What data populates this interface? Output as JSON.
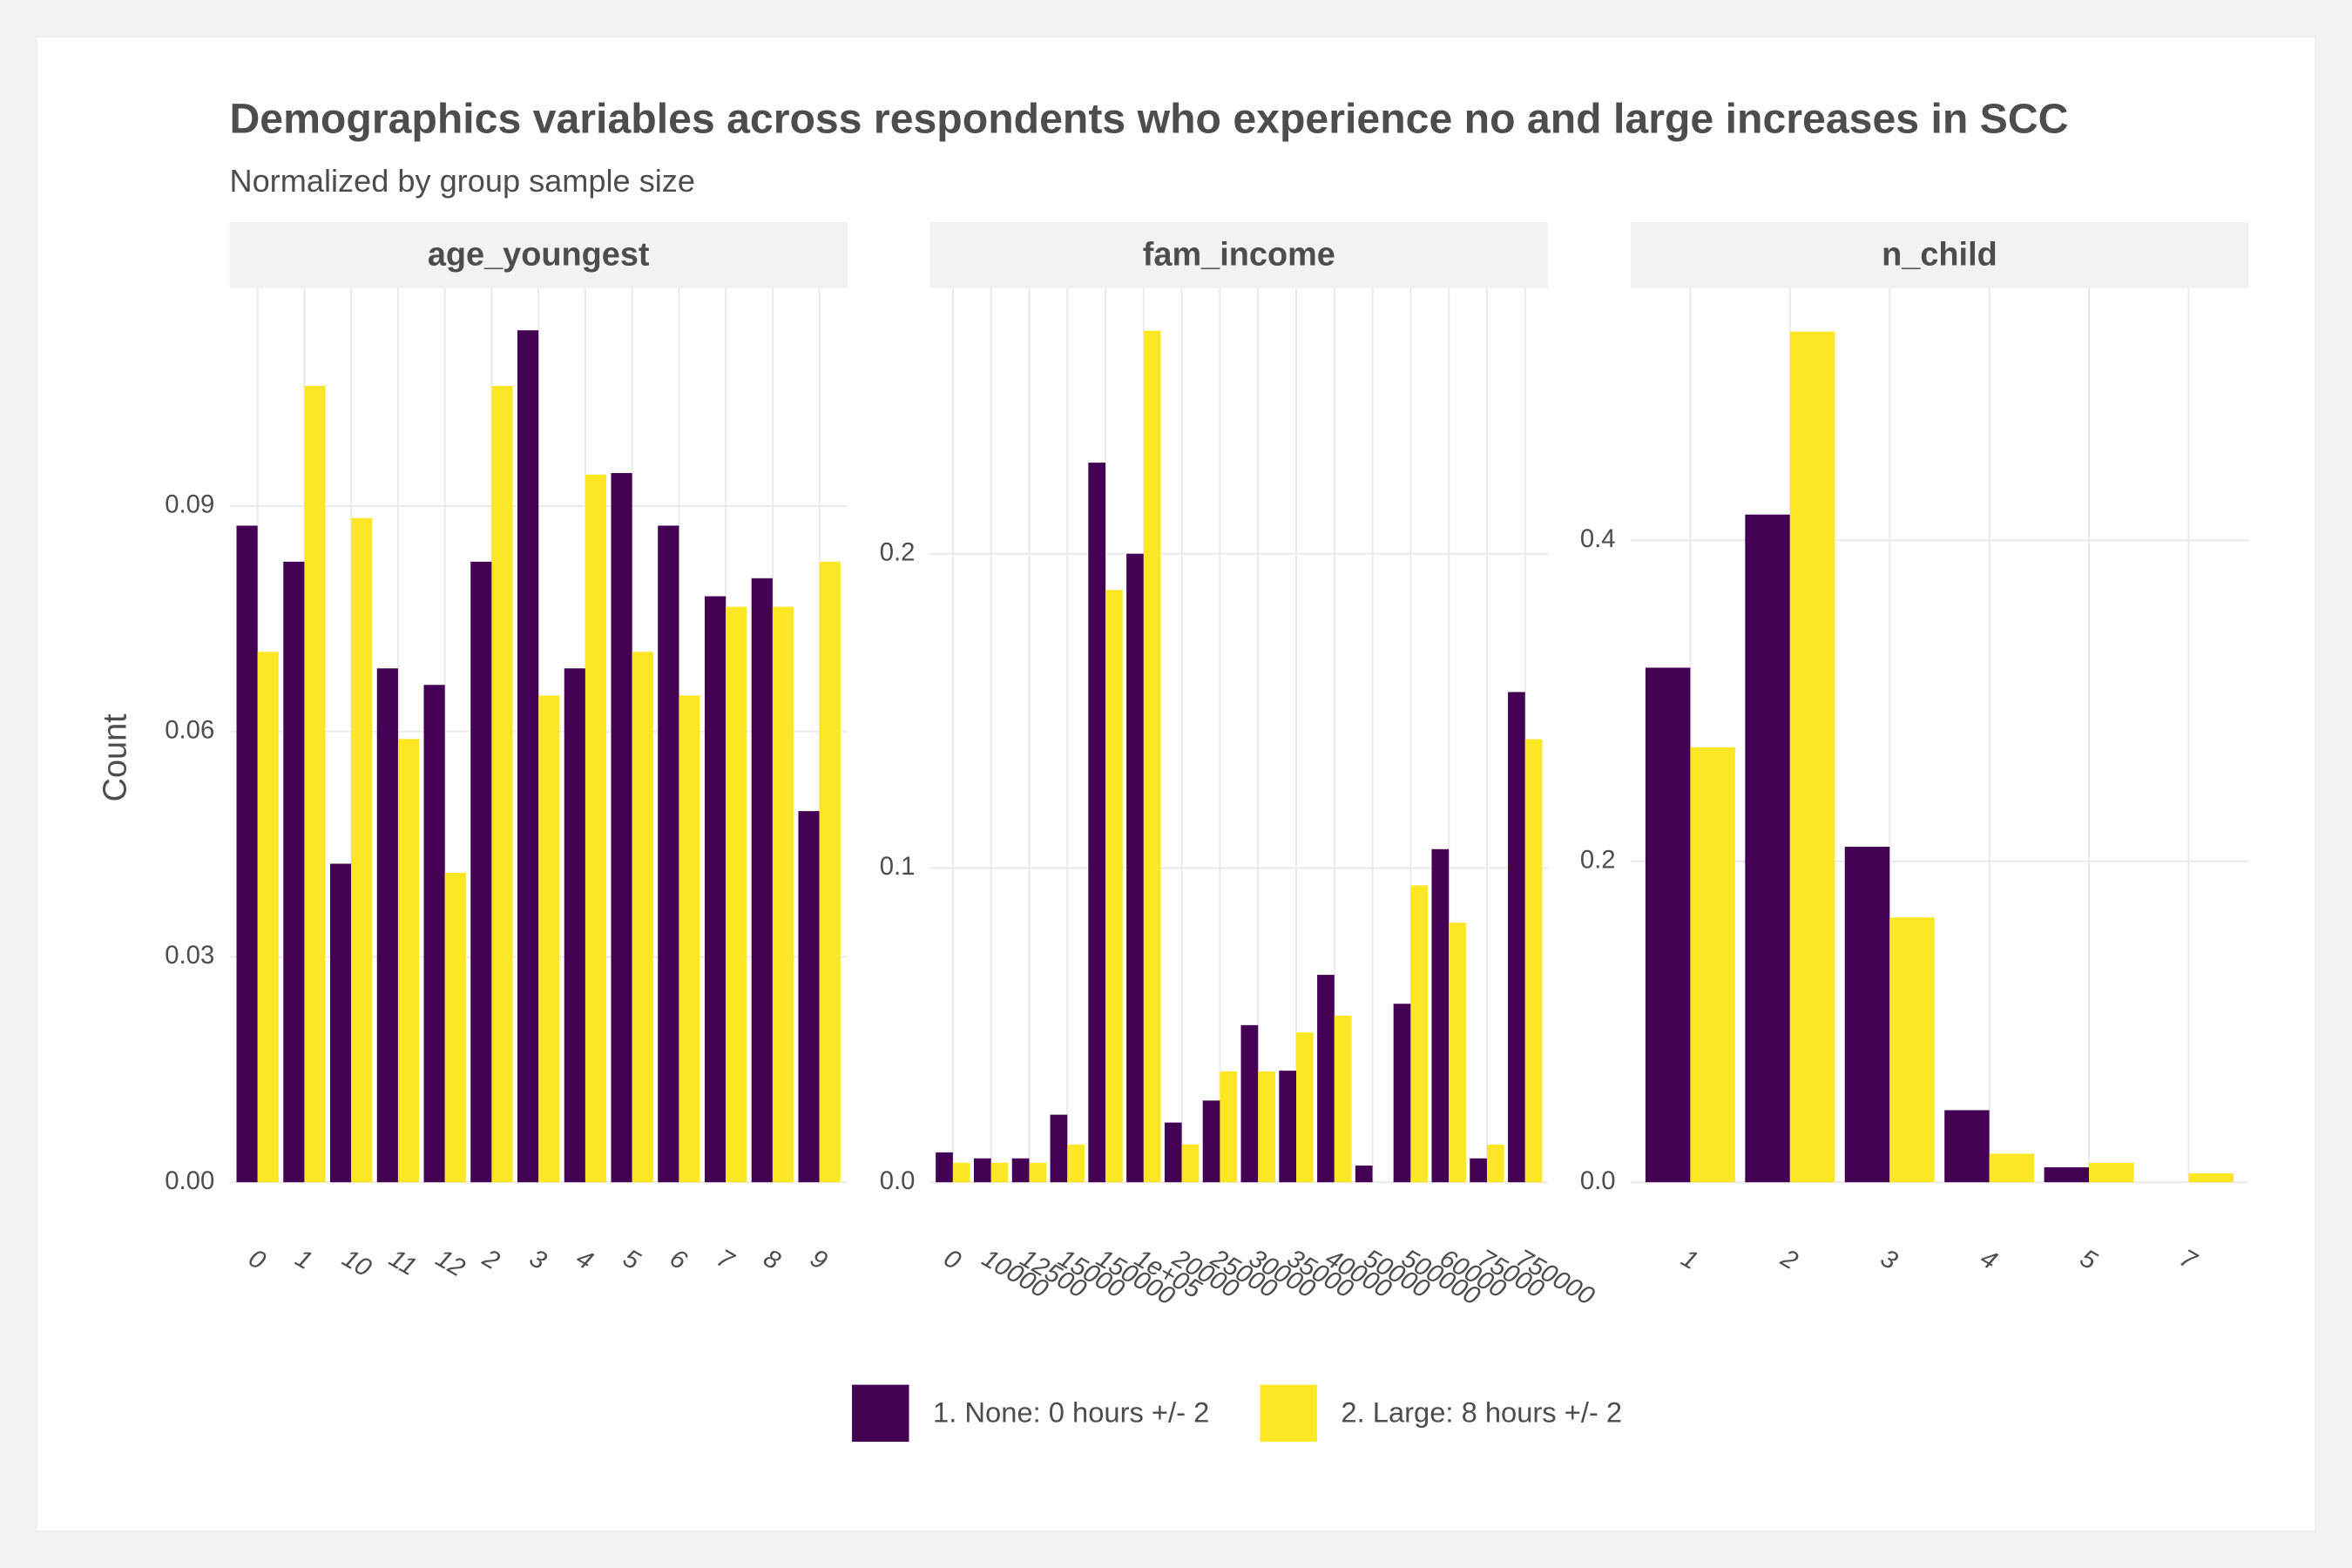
{
  "title": "Demographics variables across respondents who experience no and large increases in SCC",
  "subtitle": "Normalized by group sample size",
  "ylabel": "Count",
  "chart_data": [
    {
      "type": "bar",
      "facet": "age_youngest",
      "categories": [
        "0",
        "1",
        "10",
        "11",
        "12",
        "2",
        "3",
        "4",
        "5",
        "6",
        "7",
        "8",
        "9"
      ],
      "series": [
        {
          "name": "1. None: 0 hours +/- 2",
          "color": "#440154",
          "values": [
            0.0874,
            0.0826,
            0.0424,
            0.0684,
            0.0662,
            0.0826,
            0.1134,
            0.0684,
            0.0944,
            0.0874,
            0.078,
            0.0804,
            0.0494
          ]
        },
        {
          "name": "2. Large: 8 hours +/- 2",
          "color": "#FDE725",
          "values": [
            0.0706,
            0.106,
            0.0884,
            0.059,
            0.0412,
            0.106,
            0.0648,
            0.0942,
            0.0706,
            0.0648,
            0.0766,
            0.0766,
            0.0826
          ]
        }
      ],
      "ylim": [
        0,
        0.119
      ],
      "yticks": [
        {
          "value": 0,
          "label": "0.00"
        },
        0.03,
        0.06,
        0.09
      ],
      "grid": true
    },
    {
      "type": "bar",
      "facet": "fam_income",
      "categories": [
        "0",
        "10000",
        "12500",
        "15000",
        "150000",
        "1e+05",
        "20000",
        "25000",
        "30000",
        "35000",
        "40000",
        "50000",
        "500000",
        "60000",
        "75000",
        "750000"
      ],
      "series": [
        {
          "color": "#440154",
          "values": [
            0.0095,
            0.0076,
            0.0076,
            0.0215,
            0.229,
            0.2,
            0.019,
            0.026,
            0.05,
            0.0355,
            0.066,
            0.0053,
            0.0568,
            0.106,
            0.0076,
            0.156
          ]
        },
        {
          "color": "#FDE725",
          "values": [
            0.0062,
            0.0062,
            0.0062,
            0.012,
            0.1885,
            0.271,
            0.012,
            0.0353,
            0.0353,
            0.0477,
            0.053,
            null,
            0.0945,
            0.0826,
            0.012,
            0.141
          ]
        }
      ],
      "ylim": [
        0,
        0.2845
      ],
      "yticks": [
        {
          "value": 0,
          "label": "0.0"
        },
        0.1,
        0.2
      ],
      "grid": true
    },
    {
      "type": "bar",
      "facet": "n_child",
      "categories": [
        "1",
        "2",
        "3",
        "4",
        "5",
        "7"
      ],
      "series": [
        {
          "color": "#440154",
          "values": [
            0.3206,
            0.416,
            0.209,
            0.0449,
            0.0093,
            null
          ]
        },
        {
          "color": "#FDE725",
          "values": [
            0.271,
            0.53,
            0.165,
            0.0178,
            0.0121,
            0.0056
          ]
        }
      ],
      "ylim": [
        0,
        0.557
      ],
      "yticks": [
        {
          "value": 0,
          "label": "0.0"
        },
        0.2,
        0.4
      ],
      "grid": true
    }
  ]
}
